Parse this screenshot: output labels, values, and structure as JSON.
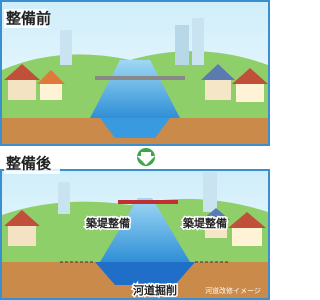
{
  "before": {
    "label": "整備前"
  },
  "after": {
    "label": "整備後",
    "annotations": [
      "築堤整備",
      "築堤整備",
      "河道掘削"
    ],
    "caption": "河道改修イメージ"
  }
}
